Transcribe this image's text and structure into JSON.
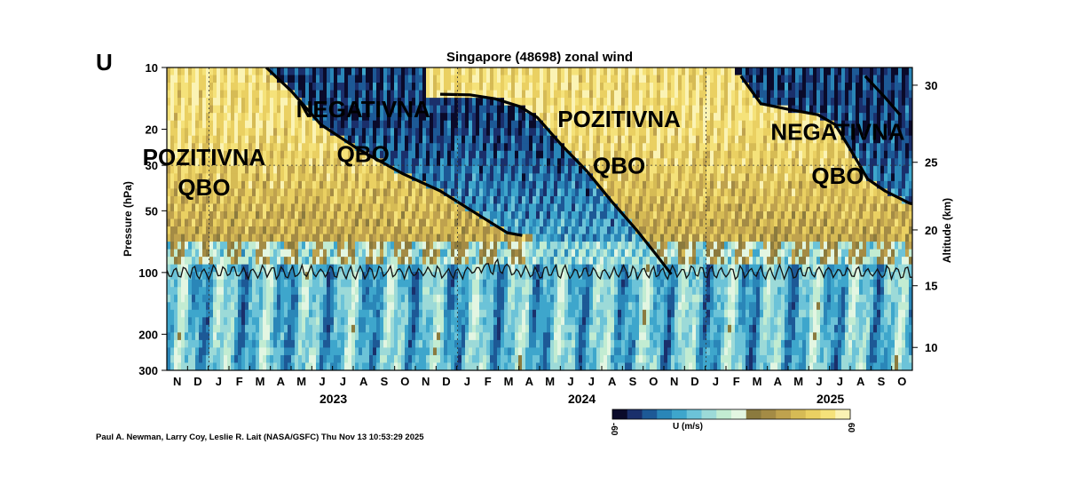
{
  "panel_letter": "U",
  "credit": "Paul A. Newman, Larry Coy, Leslie R. Lait (NASA/GSFC) Thu Nov 13 10:53:29 2025",
  "colorbar": {
    "label": "U (m/s)",
    "min_label": "-60",
    "max_label": "60",
    "colors": [
      "#0a0a2a",
      "#1a2f6b",
      "#1d5996",
      "#2a86b8",
      "#3ea6cc",
      "#6cc3d8",
      "#9cdad8",
      "#c2ecd2",
      "#e3f6e2",
      "#8b7a3e",
      "#a48b45",
      "#bfa24e",
      "#d6bb55",
      "#ead062",
      "#f5e27a",
      "#fbf3b4"
    ]
  },
  "annotations": [
    {
      "text": "POZITIVNA",
      "x": 2022.98,
      "y": 30
    },
    {
      "text": "QBO",
      "x": 2022.98,
      "y": 42
    },
    {
      "text": "NEGATIVNA",
      "x": 2023.62,
      "y": 17.5
    },
    {
      "text": "QBO",
      "x": 2023.62,
      "y": 29
    },
    {
      "text": "POZITIVNA",
      "x": 2024.65,
      "y": 19.5
    },
    {
      "text": "QBO",
      "x": 2024.65,
      "y": 33
    },
    {
      "text": "NEGATIVNA",
      "x": 2025.53,
      "y": 22.5
    },
    {
      "text": "QBO",
      "x": 2025.53,
      "y": 37
    }
  ],
  "chart_data": {
    "type": "heatmap",
    "title": "Singapore (48698) zonal wind",
    "ylabel": "Pressure (hPa)",
    "ylabel_right": "Altitude (km)",
    "y_scale": "log",
    "ylim": [
      300,
      10
    ],
    "xlim": [
      2022.83,
      2025.83
    ],
    "y_ticks": [
      "10",
      "20",
      "30",
      "50",
      "100",
      "200",
      "300"
    ],
    "y_tick_values": [
      10,
      20,
      30,
      50,
      100,
      200,
      300
    ],
    "right_ticks": [
      "30",
      "25",
      "20",
      "15",
      "10"
    ],
    "right_tick_pressures": [
      12.2,
      29.0,
      62.0,
      116.0,
      232.0
    ],
    "month_labels": [
      "N",
      "D",
      "J",
      "F",
      "M",
      "A",
      "M",
      "J",
      "J",
      "A",
      "S",
      "O",
      "N",
      "D",
      "J",
      "F",
      "M",
      "A",
      "M",
      "J",
      "J",
      "A",
      "S",
      "O",
      "N",
      "D",
      "J",
      "F",
      "M",
      "A",
      "M",
      "J",
      "J",
      "A",
      "S",
      "O"
    ],
    "year_labels": [
      {
        "label": "2023",
        "x": 2023.5
      },
      {
        "label": "2024",
        "x": 2024.5
      },
      {
        "label": "2025",
        "x": 2025.5
      }
    ],
    "year_boundaries": [
      2023.0,
      2024.0,
      2025.0
    ],
    "dashed_pressure": 30,
    "colorbar_range": [
      -60,
      60
    ],
    "qbo_phase_lines": [
      {
        "name": "line1",
        "points": [
          [
            2023.23,
            10
          ],
          [
            2023.33,
            13
          ],
          [
            2023.45,
            19
          ],
          [
            2023.6,
            25
          ],
          [
            2023.78,
            33
          ],
          [
            2023.93,
            40
          ],
          [
            2024.08,
            52
          ],
          [
            2024.2,
            64
          ],
          [
            2024.26,
            66
          ]
        ]
      },
      {
        "name": "line2",
        "points": [
          [
            2023.93,
            13.5
          ],
          [
            2024.05,
            13.6
          ],
          [
            2024.15,
            14.2
          ],
          [
            2024.25,
            15.5
          ],
          [
            2024.32,
            17.5
          ],
          [
            2024.42,
            24
          ],
          [
            2024.52,
            32
          ],
          [
            2024.62,
            45
          ],
          [
            2024.72,
            62
          ],
          [
            2024.8,
            82
          ],
          [
            2024.86,
            102
          ]
        ]
      },
      {
        "name": "line3",
        "points": [
          [
            2025.14,
            11
          ],
          [
            2025.22,
            15
          ],
          [
            2025.33,
            16
          ],
          [
            2025.45,
            17
          ],
          [
            2025.52,
            19
          ],
          [
            2025.58,
            25
          ],
          [
            2025.65,
            35
          ],
          [
            2025.72,
            40
          ],
          [
            2025.82,
            46
          ],
          [
            2025.87,
            47
          ]
        ]
      },
      {
        "name": "line4",
        "points": [
          [
            2025.64,
            11
          ],
          [
            2025.72,
            14
          ],
          [
            2025.78,
            17
          ]
        ]
      }
    ],
    "tropopause_pressure_hpa": 100
  }
}
